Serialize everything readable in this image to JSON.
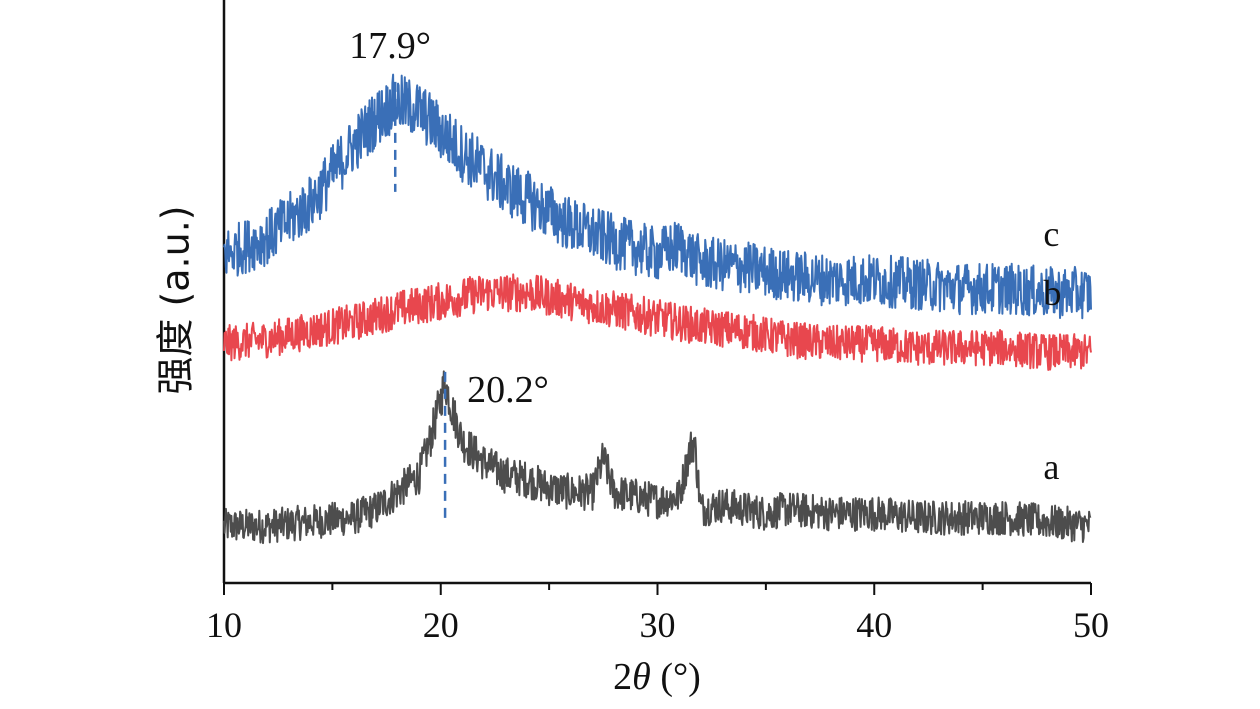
{
  "chart_data": {
    "type": "line",
    "xlabel_prefix": "2",
    "xlabel_symbol": "θ",
    "xlabel_suffix": " (°)",
    "ylabel": "强度 (a.u.)",
    "xlim": [
      10,
      50
    ],
    "xticks": [
      "10",
      "20",
      "30",
      "40",
      "50"
    ],
    "grid": false,
    "legend": "none",
    "series": [
      {
        "name": "a",
        "color": "#4d4d4d",
        "x": [
          10,
          12,
          14,
          16,
          17,
          18,
          19,
          19.5,
          20,
          20.2,
          20.5,
          21,
          22,
          23,
          24,
          25,
          26,
          27,
          27.5,
          28,
          29,
          30,
          31,
          31.5,
          31.7,
          32,
          33,
          34,
          35,
          36,
          38,
          40,
          42,
          44,
          46,
          48,
          50
        ],
        "y": [
          0.4,
          0.4,
          0.45,
          0.5,
          0.6,
          0.8,
          1.0,
          1.4,
          1.9,
          2.1,
          1.8,
          1.4,
          1.15,
          1.0,
          0.95,
          0.85,
          0.8,
          0.8,
          1.2,
          0.8,
          0.75,
          0.7,
          0.75,
          1.3,
          1.4,
          0.6,
          0.65,
          0.6,
          0.55,
          0.6,
          0.55,
          0.55,
          0.5,
          0.5,
          0.5,
          0.45,
          0.4
        ]
      },
      {
        "name": "b",
        "color": "#e8474e",
        "x": [
          10,
          12,
          14,
          16,
          18,
          20,
          22,
          24,
          26,
          28,
          30,
          32,
          34,
          36,
          38,
          40,
          42,
          44,
          46,
          48,
          50
        ],
        "y": [
          2.55,
          2.6,
          2.7,
          2.8,
          2.95,
          3.05,
          3.15,
          3.15,
          3.05,
          2.95,
          2.85,
          2.75,
          2.7,
          2.6,
          2.55,
          2.55,
          2.5,
          2.5,
          2.5,
          2.45,
          2.45
        ]
      },
      {
        "name": "c",
        "color": "#3a6fb7",
        "x": [
          10,
          12,
          13,
          14,
          15,
          16,
          17,
          17.9,
          19,
          20,
          21,
          22,
          23,
          24,
          25,
          26,
          28,
          30,
          31,
          32,
          34,
          36,
          38,
          40,
          42,
          44,
          46,
          48,
          50
        ],
        "y": [
          3.6,
          3.8,
          4.0,
          4.2,
          4.55,
          4.9,
          5.2,
          5.4,
          5.3,
          5.05,
          4.8,
          4.6,
          4.4,
          4.25,
          4.1,
          3.95,
          3.75,
          3.6,
          3.7,
          3.5,
          3.45,
          3.35,
          3.3,
          3.3,
          3.25,
          3.2,
          3.2,
          3.15,
          3.15
        ]
      }
    ],
    "annotations": [
      {
        "text": "17.9°",
        "x": 17.9,
        "line_color": "#3a6fb7",
        "series": "c"
      },
      {
        "text": "20.2°",
        "x": 20.2,
        "line_color": "#3a6fb7",
        "series": "a"
      }
    ]
  }
}
